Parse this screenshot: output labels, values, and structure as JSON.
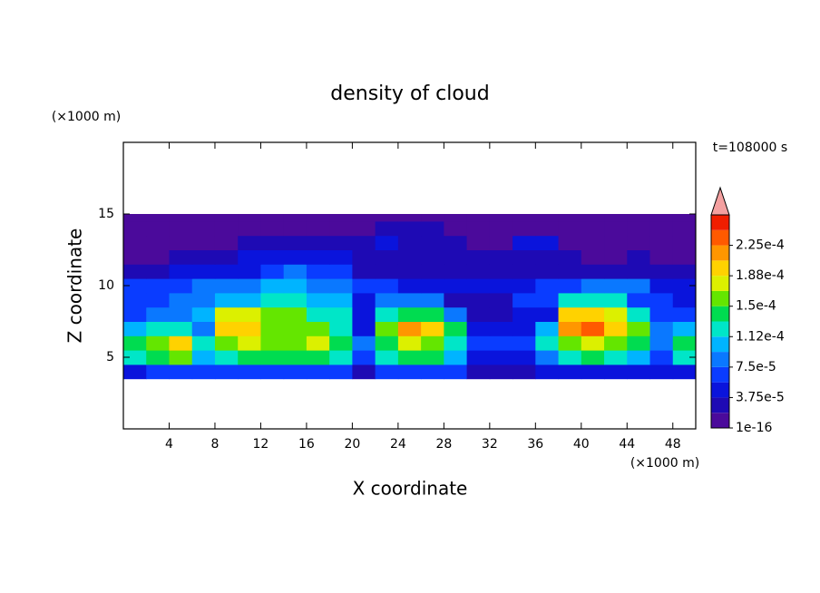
{
  "chart_data": {
    "type": "contour",
    "title": "density of cloud",
    "x_label": "X coordinate",
    "y_label": "Z coordinate",
    "x_unit_label": "(×1000 m)",
    "y_unit_label": "(×1000 m)",
    "annotation": "t=108000 s",
    "xlim": [
      0,
      50
    ],
    "xticks": [
      4,
      8,
      12,
      16,
      20,
      24,
      28,
      32,
      36,
      40,
      44,
      48
    ],
    "ylim": [
      0,
      20
    ],
    "yticks": [
      5,
      10,
      15
    ],
    "field": {
      "x_edges": [
        0,
        2,
        4,
        6,
        8,
        10,
        12,
        14,
        16,
        18,
        20,
        22,
        24,
        26,
        28,
        30,
        32,
        34,
        36,
        38,
        40,
        42,
        44,
        46,
        48,
        50
      ],
      "z_edges": [
        3.5,
        4.5,
        5.5,
        6.5,
        7.5,
        8.5,
        9.5,
        10.5,
        11.5,
        12.5,
        13.5,
        14.5,
        15
      ],
      "values": [
        [
          4.7e-05,
          6.6e-05,
          6.6e-05,
          6.6e-05,
          6.6e-05,
          6.6e-05,
          6.6e-05,
          6.6e-05,
          6.6e-05,
          6.6e-05,
          2.8e-05,
          6.6e-05,
          6.6e-05,
          6.6e-05,
          6.6e-05,
          2.8e-05,
          2.8e-05,
          2.8e-05,
          4.7e-05,
          4.7e-05,
          4.7e-05,
          4.7e-05,
          4.7e-05,
          4.7e-05,
          4.7e-05
        ],
        [
          0.000122,
          0.000141,
          0.000159,
          0.000103,
          0.000122,
          0.000141,
          0.000141,
          0.000141,
          0.000141,
          0.000122,
          6.6e-05,
          0.000122,
          0.000141,
          0.000141,
          0.000103,
          4.7e-05,
          4.7e-05,
          4.7e-05,
          8.4e-05,
          0.000122,
          0.000141,
          0.000122,
          0.000103,
          6.6e-05,
          0.000122
        ],
        [
          0.000141,
          0.000159,
          0.000197,
          0.000122,
          0.000159,
          0.000178,
          0.000159,
          0.000159,
          0.000178,
          0.000141,
          8.4e-05,
          0.000141,
          0.000178,
          0.000159,
          0.000122,
          6.6e-05,
          6.6e-05,
          6.6e-05,
          0.000122,
          0.000159,
          0.000178,
          0.000159,
          0.000141,
          8.4e-05,
          0.000141
        ],
        [
          0.000103,
          0.000122,
          0.000122,
          8.4e-05,
          0.000197,
          0.000197,
          0.000159,
          0.000159,
          0.000159,
          0.000122,
          4.7e-05,
          0.000159,
          0.000216,
          0.000197,
          0.000141,
          4.7e-05,
          4.7e-05,
          4.7e-05,
          0.000103,
          0.000216,
          0.000234,
          0.000197,
          0.000159,
          8.4e-05,
          0.000103
        ],
        [
          6.6e-05,
          8.4e-05,
          8.4e-05,
          0.000103,
          0.000178,
          0.000178,
          0.000159,
          0.000159,
          0.000122,
          0.000122,
          4.7e-05,
          0.000122,
          0.000141,
          0.000141,
          8.4e-05,
          2.8e-05,
          2.8e-05,
          4.7e-05,
          4.7e-05,
          0.000197,
          0.000197,
          0.000178,
          0.000122,
          6.6e-05,
          6.6e-05
        ],
        [
          6.6e-05,
          6.6e-05,
          8.4e-05,
          8.4e-05,
          0.000103,
          0.000103,
          0.000122,
          0.000122,
          0.000103,
          0.000103,
          4.7e-05,
          8.4e-05,
          8.4e-05,
          8.4e-05,
          2.8e-05,
          2.8e-05,
          2.8e-05,
          6.6e-05,
          6.6e-05,
          0.000122,
          0.000122,
          0.000122,
          6.6e-05,
          6.6e-05,
          4.7e-05
        ],
        [
          6.6e-05,
          6.6e-05,
          6.6e-05,
          8.4e-05,
          8.4e-05,
          8.4e-05,
          0.000103,
          0.000103,
          8.4e-05,
          8.4e-05,
          6.6e-05,
          6.6e-05,
          4.7e-05,
          4.7e-05,
          4.7e-05,
          4.7e-05,
          4.7e-05,
          4.7e-05,
          6.6e-05,
          6.6e-05,
          8.4e-05,
          8.4e-05,
          8.4e-05,
          4.7e-05,
          4.7e-05
        ],
        [
          2.8e-05,
          2.8e-05,
          4.7e-05,
          4.7e-05,
          4.7e-05,
          4.7e-05,
          6.6e-05,
          8.4e-05,
          6.6e-05,
          6.6e-05,
          2.8e-05,
          2.8e-05,
          2.8e-05,
          2.8e-05,
          2.8e-05,
          2.8e-05,
          2.8e-05,
          2.8e-05,
          2.8e-05,
          2.8e-05,
          2.8e-05,
          2.8e-05,
          2.8e-05,
          2.8e-05,
          2.8e-05
        ],
        [
          1e-06,
          1e-06,
          2.8e-05,
          2.8e-05,
          2.8e-05,
          4.7e-05,
          4.7e-05,
          4.7e-05,
          4.7e-05,
          4.7e-05,
          2.8e-05,
          2.8e-05,
          2.8e-05,
          2.8e-05,
          2.8e-05,
          2.8e-05,
          2.8e-05,
          2.8e-05,
          2.8e-05,
          2.8e-05,
          1e-06,
          1e-06,
          2.8e-05,
          1e-06,
          1e-06
        ],
        [
          1e-06,
          1e-06,
          1e-06,
          1e-06,
          1e-06,
          2.8e-05,
          2.8e-05,
          2.8e-05,
          2.8e-05,
          2.8e-05,
          2.8e-05,
          4.7e-05,
          2.8e-05,
          2.8e-05,
          2.8e-05,
          1e-06,
          1e-06,
          4.7e-05,
          4.7e-05,
          1e-06,
          1e-06,
          1e-06,
          1e-06,
          1e-06,
          1e-06
        ],
        [
          1e-06,
          1e-06,
          1e-06,
          1e-06,
          1e-06,
          1e-06,
          1e-06,
          1e-06,
          1e-06,
          1e-06,
          1e-06,
          2.8e-05,
          2.8e-05,
          2.8e-05,
          1e-06,
          1e-06,
          1e-06,
          1e-06,
          1e-06,
          1e-06,
          1e-06,
          1e-06,
          1e-06,
          1e-06,
          1e-06
        ],
        [
          1e-06,
          1e-06,
          1e-06,
          1e-06,
          1e-06,
          1e-06,
          1e-06,
          1e-06,
          1e-06,
          1e-06,
          1e-06,
          1e-06,
          1e-06,
          1e-06,
          1e-06,
          1e-06,
          1e-06,
          1e-06,
          1e-06,
          1e-06,
          1e-06,
          1e-06,
          1e-06,
          1e-06,
          1e-06
        ]
      ]
    },
    "colorbar": {
      "levels": [
        1e-16,
        1.875e-05,
        3.75e-05,
        5.625e-05,
        7.5e-05,
        9.375e-05,
        0.0001125,
        0.00013125,
        0.00015,
        0.00016875,
        0.0001875,
        0.00020625,
        0.000225,
        0.00024375,
        0.0002625
      ],
      "colors": [
        "#4b0a9b",
        "#1e0ab4",
        "#0a14dc",
        "#0a3cff",
        "#0a78ff",
        "#00b4ff",
        "#00e6c8",
        "#00dc50",
        "#64e600",
        "#dcf000",
        "#ffd200",
        "#ff9600",
        "#ff5a00",
        "#f01e00"
      ],
      "extend_color": "#f4a0a0",
      "ticks": [
        {
          "value": 1e-16,
          "label": "1e-16"
        },
        {
          "value": 3.75e-05,
          "label": "3.75e-5"
        },
        {
          "value": 7.5e-05,
          "label": "7.5e-5"
        },
        {
          "value": 0.0001125,
          "label": "1.12e-4"
        },
        {
          "value": 0.00015,
          "label": "1.5e-4"
        },
        {
          "value": 0.0001875,
          "label": "1.88e-4"
        },
        {
          "value": 0.000225,
          "label": "2.25e-4"
        }
      ]
    }
  }
}
